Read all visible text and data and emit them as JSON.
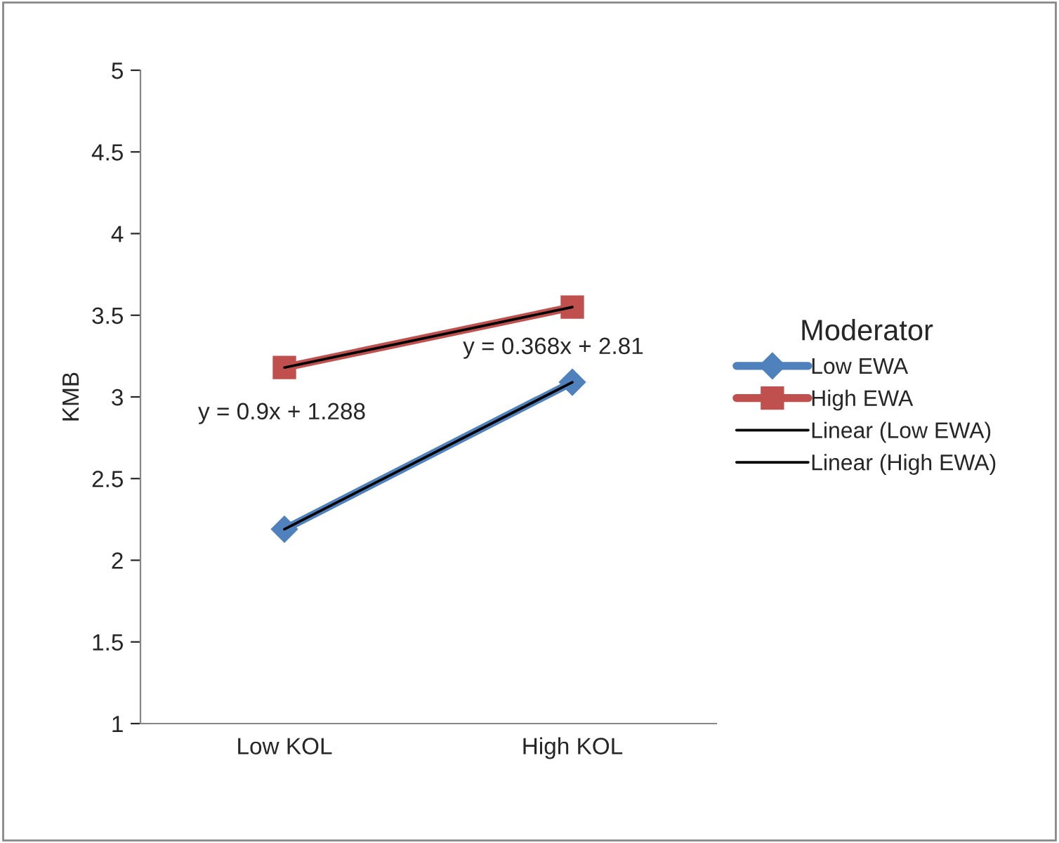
{
  "chart_data": {
    "type": "line",
    "ylabel": "KMB",
    "legend_title": "Moderator",
    "legend": "right",
    "categories": [
      "Low KOL",
      "High KOL"
    ],
    "ylim": [
      1,
      5
    ],
    "yticks": [
      1,
      1.5,
      2,
      2.5,
      3,
      3.5,
      4,
      4.5,
      5
    ],
    "grid": false,
    "series": [
      {
        "name": "Low EWA",
        "color": "#4f81bd",
        "values": [
          2.19,
          3.09
        ],
        "marker": "diamond"
      },
      {
        "name": "High EWA",
        "color": "#c0504d",
        "values": [
          3.18,
          3.55
        ],
        "marker": "square"
      },
      {
        "name": "Linear (Low EWA)",
        "color": "#000000",
        "values": [
          2.19,
          3.09
        ],
        "marker": "none"
      },
      {
        "name": "Linear (High EWA)",
        "color": "#000000",
        "values": [
          3.18,
          3.55
        ],
        "marker": "none"
      }
    ],
    "annotations": [
      "y = 0.9x + 1.288",
      "y = 0.368x + 2.81"
    ]
  }
}
